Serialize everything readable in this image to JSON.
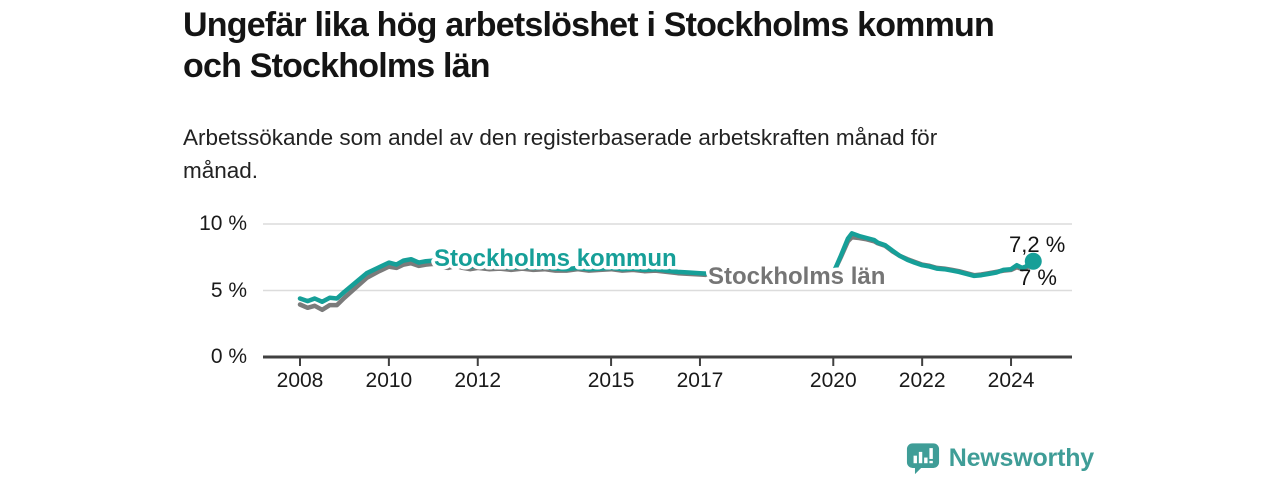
{
  "header": {
    "title_lines": [
      "Ungefär lika hög arbetslöshet i Stockholms kommun",
      "och Stockholms län"
    ],
    "subtitle_lines": [
      "Arbetssökande som andel av den registerbaserade arbetskraften månad för",
      "månad."
    ]
  },
  "footer": {
    "brand": "Newsworthy",
    "logo_color": "#3f9d97"
  },
  "colors": {
    "kommun": "#169f98",
    "lan": "#7b7b7b",
    "lan_label": "#757575",
    "grid": "#dcdcdc",
    "axis": "#404040"
  },
  "chart_data": {
    "type": "line",
    "title": "Ungefär lika hög arbetslöshet i Stockholms kommun och Stockholms län",
    "subtitle": "Arbetssökande som andel av den registerbaserade arbetskraften månad för månad.",
    "unit": "%",
    "xlim": [
      2007.17,
      2025.37
    ],
    "ylim": [
      0,
      10
    ],
    "grid": "horizontal",
    "legend_position": "inline-labels",
    "x_ticks": [
      2008,
      2010,
      2012,
      2015,
      2017,
      2020,
      2022,
      2024
    ],
    "y_ticks": [
      {
        "label": "0 %",
        "value": 0
      },
      {
        "label": "5 %",
        "value": 5
      },
      {
        "label": "10 %",
        "value": 10
      }
    ],
    "annotations": {
      "kommun_end_label": "7,2 %",
      "lan_end_label": "7 %"
    },
    "series": [
      {
        "name": "Stockholms kommun",
        "color": "#169f98",
        "points": [
          [
            2008.0,
            4.4
          ],
          [
            2008.17,
            4.2
          ],
          [
            2008.33,
            4.4
          ],
          [
            2008.5,
            4.15
          ],
          [
            2008.67,
            4.45
          ],
          [
            2008.83,
            4.4
          ],
          [
            2009.0,
            4.9
          ],
          [
            2009.25,
            5.6
          ],
          [
            2009.5,
            6.3
          ],
          [
            2009.75,
            6.7
          ],
          [
            2010.0,
            7.1
          ],
          [
            2010.17,
            6.95
          ],
          [
            2010.33,
            7.25
          ],
          [
            2010.5,
            7.35
          ],
          [
            2010.67,
            7.1
          ],
          [
            2010.83,
            7.2
          ],
          [
            2011.0,
            7.25
          ],
          [
            2011.17,
            7.0
          ],
          [
            2011.33,
            6.9
          ],
          [
            2011.5,
            7.05
          ],
          [
            2011.67,
            6.9
          ],
          [
            2011.83,
            6.8
          ],
          [
            2012.0,
            6.9
          ],
          [
            2012.25,
            6.75
          ],
          [
            2012.5,
            6.8
          ],
          [
            2012.75,
            6.7
          ],
          [
            2013.0,
            6.8
          ],
          [
            2013.25,
            6.7
          ],
          [
            2013.5,
            6.75
          ],
          [
            2013.75,
            6.65
          ],
          [
            2014.0,
            6.6
          ],
          [
            2014.25,
            6.7
          ],
          [
            2014.5,
            6.6
          ],
          [
            2014.75,
            6.65
          ],
          [
            2015.0,
            6.7
          ],
          [
            2015.25,
            6.6
          ],
          [
            2015.5,
            6.65
          ],
          [
            2015.75,
            6.55
          ],
          [
            2016.0,
            6.6
          ],
          [
            2016.25,
            6.5
          ],
          [
            2016.5,
            6.4
          ],
          [
            2016.75,
            6.35
          ],
          [
            2017.0,
            6.3
          ],
          [
            2017.25,
            6.25
          ],
          [
            2017.5,
            6.2
          ],
          [
            2017.75,
            6.1
          ],
          [
            2018.0,
            6.1
          ],
          [
            2018.25,
            6.0
          ],
          [
            2018.5,
            6.0
          ],
          [
            2018.75,
            5.95
          ],
          [
            2019.0,
            6.0
          ],
          [
            2019.25,
            6.0
          ],
          [
            2019.5,
            6.1
          ],
          [
            2019.75,
            6.2
          ],
          [
            2020.0,
            6.3
          ],
          [
            2020.17,
            7.6
          ],
          [
            2020.33,
            8.9
          ],
          [
            2020.42,
            9.3
          ],
          [
            2020.58,
            9.1
          ],
          [
            2020.75,
            8.95
          ],
          [
            2020.92,
            8.8
          ],
          [
            2021.0,
            8.6
          ],
          [
            2021.17,
            8.4
          ],
          [
            2021.33,
            8.0
          ],
          [
            2021.5,
            7.6
          ],
          [
            2021.67,
            7.3
          ],
          [
            2021.83,
            7.1
          ],
          [
            2022.0,
            6.9
          ],
          [
            2022.17,
            6.8
          ],
          [
            2022.33,
            6.65
          ],
          [
            2022.5,
            6.6
          ],
          [
            2022.67,
            6.5
          ],
          [
            2022.83,
            6.4
          ],
          [
            2023.0,
            6.25
          ],
          [
            2023.17,
            6.1
          ],
          [
            2023.33,
            6.15
          ],
          [
            2023.5,
            6.25
          ],
          [
            2023.67,
            6.35
          ],
          [
            2023.83,
            6.55
          ],
          [
            2024.0,
            6.6
          ],
          [
            2024.13,
            6.9
          ],
          [
            2024.25,
            6.7
          ],
          [
            2024.33,
            6.8
          ],
          [
            2024.5,
            7.2
          ]
        ],
        "end_value": 7.2
      },
      {
        "name": "Stockholms län",
        "color": "#7b7b7b",
        "points": [
          [
            2008.0,
            3.95
          ],
          [
            2008.17,
            3.7
          ],
          [
            2008.33,
            3.85
          ],
          [
            2008.5,
            3.55
          ],
          [
            2008.67,
            3.9
          ],
          [
            2008.83,
            3.9
          ],
          [
            2009.0,
            4.45
          ],
          [
            2009.25,
            5.2
          ],
          [
            2009.5,
            5.95
          ],
          [
            2009.75,
            6.4
          ],
          [
            2010.0,
            6.8
          ],
          [
            2010.17,
            6.7
          ],
          [
            2010.33,
            6.95
          ],
          [
            2010.5,
            7.05
          ],
          [
            2010.67,
            6.85
          ],
          [
            2010.83,
            6.95
          ],
          [
            2011.0,
            7.0
          ],
          [
            2011.17,
            6.8
          ],
          [
            2011.33,
            6.7
          ],
          [
            2011.5,
            6.85
          ],
          [
            2011.67,
            6.7
          ],
          [
            2011.83,
            6.6
          ],
          [
            2012.0,
            6.7
          ],
          [
            2012.25,
            6.6
          ],
          [
            2012.5,
            6.65
          ],
          [
            2012.75,
            6.55
          ],
          [
            2013.0,
            6.65
          ],
          [
            2013.25,
            6.55
          ],
          [
            2013.5,
            6.6
          ],
          [
            2013.75,
            6.5
          ],
          [
            2014.0,
            6.5
          ],
          [
            2014.25,
            6.6
          ],
          [
            2014.5,
            6.5
          ],
          [
            2014.75,
            6.55
          ],
          [
            2015.0,
            6.6
          ],
          [
            2015.25,
            6.5
          ],
          [
            2015.5,
            6.55
          ],
          [
            2015.75,
            6.45
          ],
          [
            2016.0,
            6.5
          ],
          [
            2016.25,
            6.4
          ],
          [
            2016.5,
            6.3
          ],
          [
            2016.75,
            6.25
          ],
          [
            2017.0,
            6.2
          ],
          [
            2017.25,
            6.15
          ],
          [
            2017.5,
            6.1
          ],
          [
            2017.75,
            6.0
          ],
          [
            2018.0,
            6.0
          ],
          [
            2018.25,
            5.9
          ],
          [
            2018.5,
            5.9
          ],
          [
            2018.75,
            5.9
          ],
          [
            2019.0,
            5.95
          ],
          [
            2019.25,
            6.0
          ],
          [
            2019.5,
            6.05
          ],
          [
            2019.75,
            6.15
          ],
          [
            2020.0,
            6.3
          ],
          [
            2020.17,
            7.5
          ],
          [
            2020.33,
            8.7
          ],
          [
            2020.42,
            9.0
          ],
          [
            2020.58,
            8.95
          ],
          [
            2020.75,
            8.85
          ],
          [
            2020.92,
            8.7
          ],
          [
            2021.0,
            8.55
          ],
          [
            2021.17,
            8.35
          ],
          [
            2021.33,
            7.95
          ],
          [
            2021.5,
            7.6
          ],
          [
            2021.67,
            7.35
          ],
          [
            2021.83,
            7.15
          ],
          [
            2022.0,
            6.95
          ],
          [
            2022.17,
            6.85
          ],
          [
            2022.33,
            6.7
          ],
          [
            2022.5,
            6.65
          ],
          [
            2022.67,
            6.55
          ],
          [
            2022.83,
            6.45
          ],
          [
            2023.0,
            6.3
          ],
          [
            2023.17,
            6.15
          ],
          [
            2023.33,
            6.2
          ],
          [
            2023.5,
            6.3
          ],
          [
            2023.67,
            6.4
          ],
          [
            2023.83,
            6.5
          ],
          [
            2024.0,
            6.55
          ],
          [
            2024.13,
            6.75
          ],
          [
            2024.25,
            6.6
          ],
          [
            2024.33,
            6.7
          ],
          [
            2024.5,
            7.0
          ]
        ],
        "end_value": 7.0
      }
    ]
  }
}
